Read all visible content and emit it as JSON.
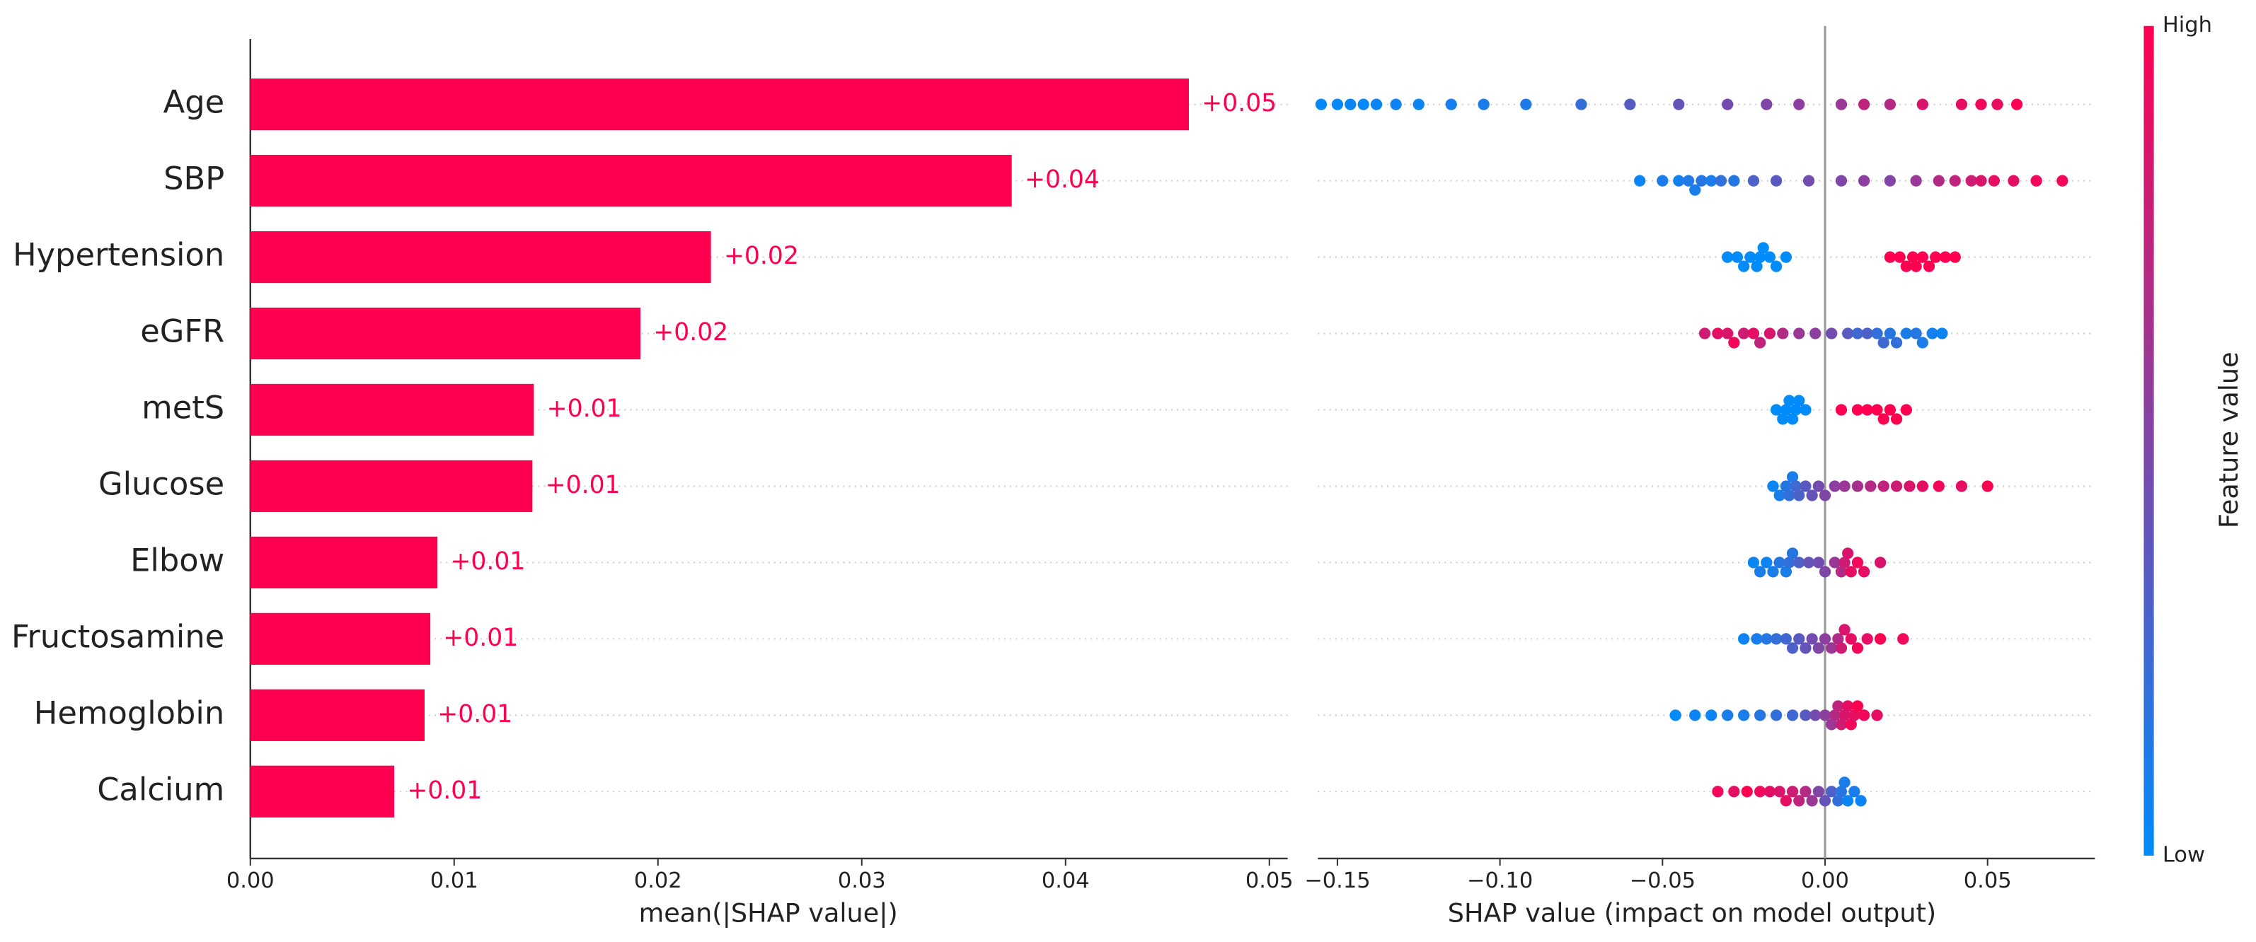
{
  "chart_data": [
    {
      "type": "hbar",
      "xlabel": "mean(|SHAP value|)",
      "categories": [
        "Age",
        "SBP",
        "Hypertension",
        "eGFR",
        "metS",
        "Glucose",
        "Elbow",
        "Fructosamine",
        "Hemoglobin",
        "Calcium"
      ],
      "values": [
        0.04605,
        0.03736,
        0.0226,
        0.01914,
        0.01391,
        0.01384,
        0.00918,
        0.00883,
        0.00855,
        0.00706
      ],
      "value_labels": [
        "+0.05",
        "+0.04",
        "+0.02",
        "+0.02",
        "+0.01",
        "+0.01",
        "+0.01",
        "+0.01",
        "+0.01",
        "+0.01"
      ],
      "color": "#ff0051",
      "xlim": [
        0,
        0.0509
      ],
      "xticks": [
        {
          "value": 0,
          "label": "0.00"
        },
        0.01,
        0.02,
        0.03,
        0.04,
        0.05
      ],
      "grid": true
    },
    {
      "type": "beeswarm",
      "xlabel": "SHAP value (impact on model output)",
      "xlim": [
        -0.156,
        0.083
      ],
      "xticks": [
        {
          "value": -0.15,
          "label": "−0.15"
        },
        {
          "value": -0.1,
          "label": "−0.10"
        },
        {
          "value": -0.05,
          "label": "−0.05"
        },
        {
          "value": 0,
          "label": "0.00"
        },
        {
          "value": 0.05,
          "label": "0.05"
        }
      ],
      "low_color": "#008bfb",
      "high_color": "#ff0051",
      "colorbar": {
        "label": "Feature value",
        "high": "High",
        "low": "Low"
      },
      "grid": true,
      "rows": [
        {
          "values": [
            -0.155,
            -0.15,
            -0.146,
            -0.142,
            -0.138,
            -0.132,
            -0.125,
            -0.115,
            -0.105,
            -0.092,
            -0.075,
            -0.06,
            -0.045,
            -0.03,
            -0.018,
            -0.008,
            0.005,
            0.012,
            0.02,
            0.03,
            0.042,
            0.048,
            0.053,
            0.059
          ],
          "feature_values": [
            0.02,
            0.03,
            0.05,
            0.02,
            0.04,
            0.06,
            0.05,
            0.08,
            0.1,
            0.12,
            0.2,
            0.35,
            0.4,
            0.45,
            0.5,
            0.55,
            0.6,
            0.75,
            0.7,
            0.85,
            0.9,
            0.95,
            0.92,
            0.98
          ]
        },
        {
          "values": [
            -0.057,
            -0.05,
            -0.045,
            -0.042,
            -0.04,
            -0.038,
            -0.035,
            -0.032,
            -0.028,
            -0.022,
            -0.015,
            -0.005,
            0.005,
            0.012,
            0.02,
            0.028,
            0.035,
            0.04,
            0.045,
            0.048,
            0.052,
            0.058,
            0.065,
            0.073
          ],
          "feature_values": [
            0.05,
            0.1,
            0.08,
            0.12,
            0.1,
            0.15,
            0.1,
            0.2,
            0.15,
            0.3,
            0.35,
            0.45,
            0.5,
            0.55,
            0.5,
            0.6,
            0.7,
            0.75,
            0.8,
            0.85,
            0.9,
            0.88,
            0.95,
            0.95
          ]
        },
        {
          "values": [
            -0.03,
            -0.027,
            -0.025,
            -0.023,
            -0.021,
            -0.02,
            -0.019,
            -0.017,
            -0.015,
            -0.012,
            0.02,
            0.023,
            0.025,
            0.027,
            0.028,
            0.03,
            0.032,
            0.034,
            0.037,
            0.04
          ],
          "feature_values": [
            0,
            0,
            0,
            0,
            0,
            0,
            0,
            0,
            0,
            0,
            1,
            1,
            1,
            1,
            1,
            1,
            1,
            1,
            1,
            1
          ]
        },
        {
          "values": [
            -0.037,
            -0.033,
            -0.03,
            -0.028,
            -0.025,
            -0.022,
            -0.02,
            -0.017,
            -0.013,
            -0.008,
            -0.003,
            0.002,
            0.007,
            0.01,
            0.013,
            0.016,
            0.018,
            0.02,
            0.022,
            0.025,
            0.028,
            0.03,
            0.033,
            0.036
          ],
          "feature_values": [
            0.8,
            0.9,
            0.85,
            0.95,
            0.8,
            0.9,
            0.75,
            0.85,
            0.7,
            0.6,
            0.55,
            0.45,
            0.35,
            0.25,
            0.3,
            0.2,
            0.25,
            0.15,
            0.2,
            0.1,
            0.15,
            0.1,
            0.08,
            0.05
          ]
        },
        {
          "values": [
            -0.015,
            -0.013,
            -0.012,
            -0.011,
            -0.01,
            -0.009,
            -0.008,
            -0.006,
            0.005,
            0.01,
            0.013,
            0.016,
            0.018,
            0.02,
            0.022,
            0.025
          ],
          "feature_values": [
            0,
            0,
            0,
            0,
            0,
            0,
            0,
            0,
            1,
            1,
            1,
            1,
            1,
            1,
            1,
            1
          ]
        },
        {
          "values": [
            -0.016,
            -0.014,
            -0.012,
            -0.011,
            -0.01,
            -0.009,
            -0.008,
            -0.006,
            -0.004,
            -0.002,
            0,
            0.003,
            0.006,
            0.01,
            0.014,
            0.018,
            0.022,
            0.026,
            0.03,
            0.035,
            0.042,
            0.05
          ],
          "feature_values": [
            0.05,
            0.1,
            0.15,
            0.2,
            0.1,
            0.25,
            0.3,
            0.35,
            0.4,
            0.45,
            0.5,
            0.55,
            0.6,
            0.65,
            0.7,
            0.75,
            0.8,
            0.85,
            0.9,
            0.95,
            0.9,
            1
          ]
        },
        {
          "values": [
            -0.022,
            -0.02,
            -0.018,
            -0.016,
            -0.014,
            -0.012,
            -0.011,
            -0.01,
            -0.008,
            -0.005,
            -0.002,
            0,
            0.003,
            0.005,
            0.006,
            0.007,
            0.008,
            0.01,
            0.012,
            0.017
          ],
          "feature_values": [
            0.05,
            0.1,
            0.05,
            0.1,
            0.15,
            0.1,
            0.2,
            0.15,
            0.3,
            0.4,
            0.45,
            0.5,
            0.6,
            0.7,
            0.8,
            0.85,
            0.9,
            0.95,
            0.9,
            0.85
          ]
        },
        {
          "values": [
            -0.025,
            -0.021,
            -0.018,
            -0.015,
            -0.012,
            -0.01,
            -0.008,
            -0.006,
            -0.004,
            -0.002,
            0,
            0.002,
            0.004,
            0.005,
            0.006,
            0.008,
            0.01,
            0.013,
            0.017,
            0.024
          ],
          "feature_values": [
            0.05,
            0.1,
            0.15,
            0.2,
            0.25,
            0.3,
            0.35,
            0.4,
            0.45,
            0.5,
            0.55,
            0.6,
            0.7,
            0.8,
            0.85,
            0.9,
            0.95,
            0.9,
            1,
            0.95
          ]
        },
        {
          "values": [
            -0.046,
            -0.04,
            -0.035,
            -0.03,
            -0.025,
            -0.02,
            -0.015,
            -0.01,
            -0.006,
            -0.003,
            0,
            0.002,
            0.003,
            0.004,
            0.005,
            0.006,
            0.007,
            0.008,
            0.009,
            0.01,
            0.012,
            0.016
          ],
          "feature_values": [
            0,
            0.05,
            0.05,
            0.1,
            0.1,
            0.15,
            0.2,
            0.25,
            0.35,
            0.45,
            0.55,
            0.6,
            0.7,
            0.75,
            0.8,
            0.85,
            0.9,
            0.95,
            0.9,
            1,
            0.95,
            0.9
          ]
        },
        {
          "values": [
            -0.033,
            -0.028,
            -0.024,
            -0.02,
            -0.017,
            -0.014,
            -0.012,
            -0.01,
            -0.008,
            -0.006,
            -0.004,
            -0.002,
            0,
            0.002,
            0.004,
            0.005,
            0.006,
            0.007,
            0.009,
            0.011
          ],
          "feature_values": [
            0.95,
            0.9,
            1,
            0.95,
            0.9,
            0.85,
            0.9,
            0.8,
            0.75,
            0.7,
            0.6,
            0.5,
            0.4,
            0.3,
            0.2,
            0.15,
            0.1,
            0.05,
            0.1,
            0.05
          ]
        }
      ]
    }
  ]
}
